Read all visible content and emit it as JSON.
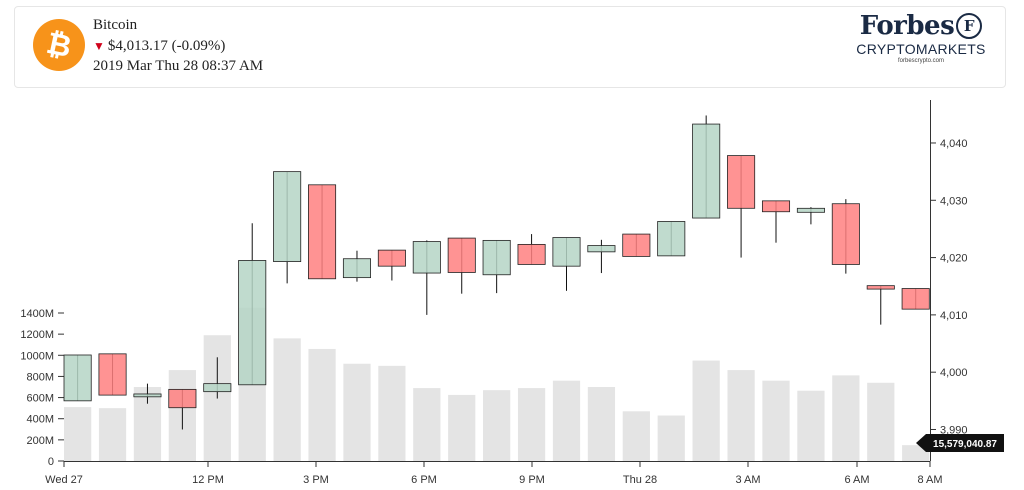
{
  "header": {
    "coin_name": "Bitcoin",
    "price": "$4,013.17 (-0.09%)",
    "datetime": "2019 Mar Thu 28 08:37 AM",
    "brand_name": "Forbes",
    "brand_badge": "F",
    "brand_sub": "CRYPTOMARKETS",
    "brand_url": "forbescrypto.com",
    "coin_glyph": "₿",
    "coin_color": "#f7931a"
  },
  "chart_data": {
    "type": "candlestick",
    "x_ticks": [
      "Wed 27",
      "12 PM",
      "3 PM",
      "6 PM",
      "9 PM",
      "Thu 28",
      "3 AM",
      "6 AM",
      "8 AM"
    ],
    "price_ticks": [
      "4,040",
      "4,030",
      "4,020",
      "4,010",
      "4,000",
      "3,990"
    ],
    "price_range": [
      3984.5,
      4047.5
    ],
    "volume_ticks": [
      "1400M",
      "1200M",
      "1000M",
      "800M",
      "600M",
      "400M",
      "200M",
      "0"
    ],
    "volume_range": [
      0,
      1400
    ],
    "current_volume": "15,579,040.87",
    "colors": {
      "up": "#b5d5c5",
      "down": "#ff8080",
      "volume": "#e4e4e4"
    },
    "candles": [
      {
        "open": 3995.0,
        "high": 4003.0,
        "low": 3995.0,
        "close": 4003.0,
        "volume": 510
      },
      {
        "open": 4003.2,
        "high": 4003.2,
        "low": 3996.0,
        "close": 3996.0,
        "volume": 500
      },
      {
        "open": 3995.7,
        "high": 3998.0,
        "low": 3994.5,
        "close": 3996.2,
        "volume": 700
      },
      {
        "open": 3997.0,
        "high": 3997.0,
        "low": 3990.0,
        "close": 3993.8,
        "volume": 860
      },
      {
        "open": 3996.6,
        "high": 4002.6,
        "low": 3995.4,
        "close": 3998.0,
        "volume": 1190
      },
      {
        "open": 3997.8,
        "high": 4026.0,
        "low": 3997.8,
        "close": 4019.5,
        "volume": 1450
      },
      {
        "open": 4019.3,
        "high": 4035.0,
        "low": 4015.5,
        "close": 4035.0,
        "volume": 1160
      },
      {
        "open": 4032.7,
        "high": 4032.7,
        "low": 4016.3,
        "close": 4016.3,
        "volume": 1060
      },
      {
        "open": 4016.5,
        "high": 4021.2,
        "low": 4015.8,
        "close": 4019.8,
        "volume": 920
      },
      {
        "open": 4021.3,
        "high": 4021.3,
        "low": 4016.0,
        "close": 4018.5,
        "volume": 900
      },
      {
        "open": 4017.3,
        "high": 4023.0,
        "low": 4010.0,
        "close": 4022.8,
        "volume": 690
      },
      {
        "open": 4023.4,
        "high": 4023.4,
        "low": 4013.7,
        "close": 4017.4,
        "volume": 625
      },
      {
        "open": 4017.0,
        "high": 4023.0,
        "low": 4013.8,
        "close": 4023.0,
        "volume": 670
      },
      {
        "open": 4022.3,
        "high": 4024.1,
        "low": 4018.8,
        "close": 4018.8,
        "volume": 690
      },
      {
        "open": 4018.5,
        "high": 4023.5,
        "low": 4014.2,
        "close": 4023.5,
        "volume": 760
      },
      {
        "open": 4021.0,
        "high": 4023.1,
        "low": 4017.3,
        "close": 4022.1,
        "volume": 700
      },
      {
        "open": 4024.1,
        "high": 4024.1,
        "low": 4020.2,
        "close": 4020.2,
        "volume": 470
      },
      {
        "open": 4020.3,
        "high": 4026.3,
        "low": 4020.3,
        "close": 4026.3,
        "volume": 430
      },
      {
        "open": 4026.9,
        "high": 4044.8,
        "low": 4026.9,
        "close": 4043.3,
        "volume": 950
      },
      {
        "open": 4037.8,
        "high": 4037.8,
        "low": 4020.0,
        "close": 4028.6,
        "volume": 860
      },
      {
        "open": 4029.9,
        "high": 4029.9,
        "low": 4022.6,
        "close": 4028.0,
        "volume": 760
      },
      {
        "open": 4027.9,
        "high": 4028.8,
        "low": 4025.8,
        "close": 4028.6,
        "volume": 665
      },
      {
        "open": 4029.4,
        "high": 4030.2,
        "low": 4017.2,
        "close": 4018.8,
        "volume": 810
      },
      {
        "open": 4015.1,
        "high": 4015.1,
        "low": 4008.3,
        "close": 4014.5,
        "volume": 740
      },
      {
        "open": 4014.6,
        "high": 4014.6,
        "low": 4011.0,
        "close": 4011.0,
        "volume": 150
      }
    ]
  }
}
